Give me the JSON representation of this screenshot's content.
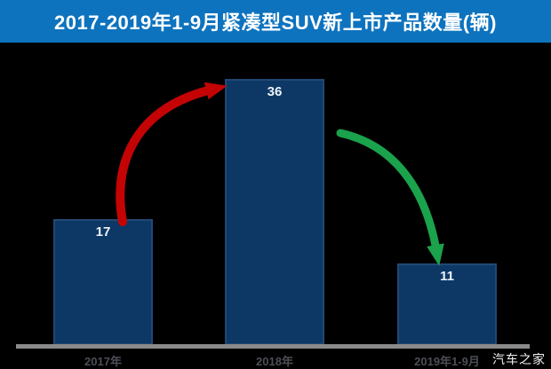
{
  "title": "2017-2019年1-9月紧凑型SUV新上市产品数量(辆)",
  "watermark": "汽车之家",
  "chart_data": {
    "type": "bar",
    "title": "2017-2019年1-9月紧凑型SUV新上市产品数量(辆)",
    "categories": [
      "2017年",
      "2018年",
      "2019年1-9月"
    ],
    "values": [
      17,
      36,
      11
    ],
    "xlabel": "",
    "ylabel": "",
    "ylim": [
      0,
      36
    ],
    "grid": false,
    "legend": "none",
    "annotations": [
      {
        "name": "increase-arrow",
        "from": "2017年",
        "to": "2018年",
        "direction": "up",
        "color": "#c40404"
      },
      {
        "name": "decrease-arrow",
        "from": "2018年",
        "to": "2019年1-9月",
        "direction": "down",
        "color": "#1ba24c"
      }
    ]
  },
  "colors": {
    "background": "#000000",
    "banner": "#0d73be",
    "title_text": "#ffffff",
    "bar": "#0d3866",
    "value_label": "#eef3f9",
    "axis": "#8a8a8a",
    "category_label": "#4b4e55",
    "up_arrow": "#c40404",
    "down_arrow": "#1ba24c",
    "watermark": "#f2f2f2"
  }
}
